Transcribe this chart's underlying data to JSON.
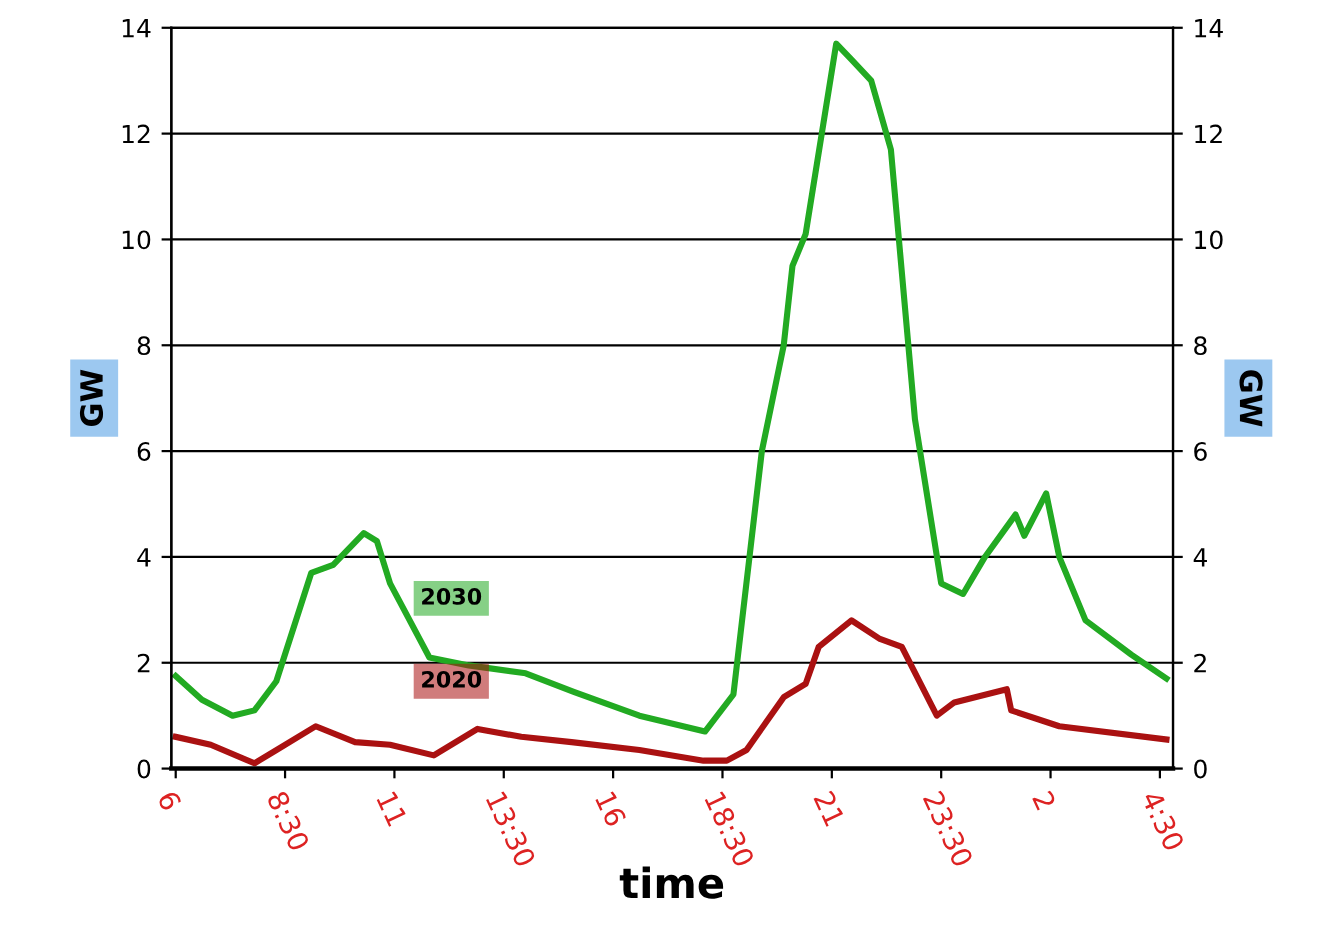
{
  "chart_data": {
    "type": "line",
    "xlabel": "time",
    "ylabel": "GW",
    "y2label": "GW",
    "xlim": [
      "2020-01-01T05:54",
      "2020-01-02T04:48"
    ],
    "xticks": [
      {
        "value": "2020-01-01T06:00",
        "label": "6"
      },
      {
        "value": "2020-01-01T08:30",
        "label": "8:30"
      },
      {
        "value": "2020-01-01T11:00",
        "label": "11"
      },
      {
        "value": "2020-01-01T13:30",
        "label": "13:30"
      },
      {
        "value": "2020-01-01T16:00",
        "label": "16"
      },
      {
        "value": "2020-01-01T18:30",
        "label": "18:30"
      },
      {
        "value": "2020-01-01T21:00",
        "label": "21"
      },
      {
        "value": "2020-01-01T23:30",
        "label": "23:30"
      },
      {
        "value": "2020-01-02T02:00",
        "label": "2"
      },
      {
        "value": "2020-01-02T04:30",
        "label": "4:30"
      }
    ],
    "ylim": [
      0,
      14
    ],
    "yticks": [
      0,
      2,
      4,
      6,
      8,
      10,
      12,
      14
    ],
    "y2lim": [
      0,
      14
    ],
    "y2ticks": [
      0,
      2,
      4,
      6,
      8,
      10,
      12,
      14
    ],
    "grid": "y",
    "marker": "none",
    "line_style": "solid",
    "legend": false,
    "series": [
      {
        "name": "2030",
        "color": "#22aa22",
        "x": [
          "2020-01-01T06:00",
          "2020-01-01T06:36",
          "2020-01-01T07:18",
          "2020-01-01T07:48",
          "2020-01-01T08:18",
          "2020-01-01T09:06",
          "2020-01-01T09:36",
          "2020-01-01T10:18",
          "2020-01-01T10:36",
          "2020-01-01T10:54",
          "2020-01-01T11:48",
          "2020-01-01T12:42",
          "2020-01-01T14:00",
          "2020-01-01T15:06",
          "2020-01-01T16:36",
          "2020-01-01T18:06",
          "2020-01-01T18:45",
          "2020-01-01T19:24",
          "2020-01-01T19:54",
          "2020-01-01T20:06",
          "2020-01-01T20:24",
          "2020-01-01T21:06",
          "2020-01-01T21:27",
          "2020-01-01T21:54",
          "2020-01-01T22:21",
          "2020-01-01T22:54",
          "2020-01-01T23:30",
          "2020-01-02T00:00",
          "2020-01-02T00:30",
          "2020-01-02T01:12",
          "2020-01-02T01:24",
          "2020-01-02T01:54",
          "2020-01-02T02:12",
          "2020-01-02T02:48",
          "2020-01-02T03:51",
          "2020-01-02T04:39"
        ],
        "values": [
          1.75,
          1.3,
          1.0,
          1.1,
          1.65,
          3.7,
          3.85,
          4.45,
          4.3,
          3.5,
          2.1,
          1.95,
          1.8,
          1.45,
          1.0,
          0.7,
          1.4,
          6.0,
          8.0,
          9.5,
          10.1,
          13.7,
          13.4,
          13.0,
          11.7,
          6.6,
          3.5,
          3.3,
          4.0,
          4.8,
          4.4,
          5.2,
          4.0,
          2.8,
          2.15,
          1.7
        ]
      },
      {
        "name": "2020",
        "color": "#aa1111",
        "x": [
          "2020-01-01T06:00",
          "2020-01-01T06:48",
          "2020-01-01T07:48",
          "2020-01-01T08:18",
          "2020-01-01T09:12",
          "2020-01-01T10:06",
          "2020-01-01T10:54",
          "2020-01-01T11:54",
          "2020-01-01T12:54",
          "2020-01-01T13:54",
          "2020-01-01T15:03",
          "2020-01-01T16:36",
          "2020-01-01T18:04",
          "2020-01-01T18:36",
          "2020-01-01T19:03",
          "2020-01-01T19:54",
          "2020-01-01T20:24",
          "2020-01-01T20:42",
          "2020-01-01T21:27",
          "2020-01-01T22:06",
          "2020-01-01T22:36",
          "2020-01-01T23:24",
          "2020-01-01T23:48",
          "2020-01-02T01:00",
          "2020-01-02T01:06",
          "2020-01-02T02:12",
          "2020-01-02T04:39"
        ],
        "values": [
          0.6,
          0.45,
          0.1,
          0.35,
          0.8,
          0.5,
          0.45,
          0.25,
          0.75,
          0.6,
          0.5,
          0.35,
          0.15,
          0.15,
          0.35,
          1.35,
          1.6,
          2.3,
          2.8,
          2.45,
          2.3,
          1.0,
          1.25,
          1.5,
          1.1,
          0.8,
          0.55
        ]
      }
    ]
  }
}
